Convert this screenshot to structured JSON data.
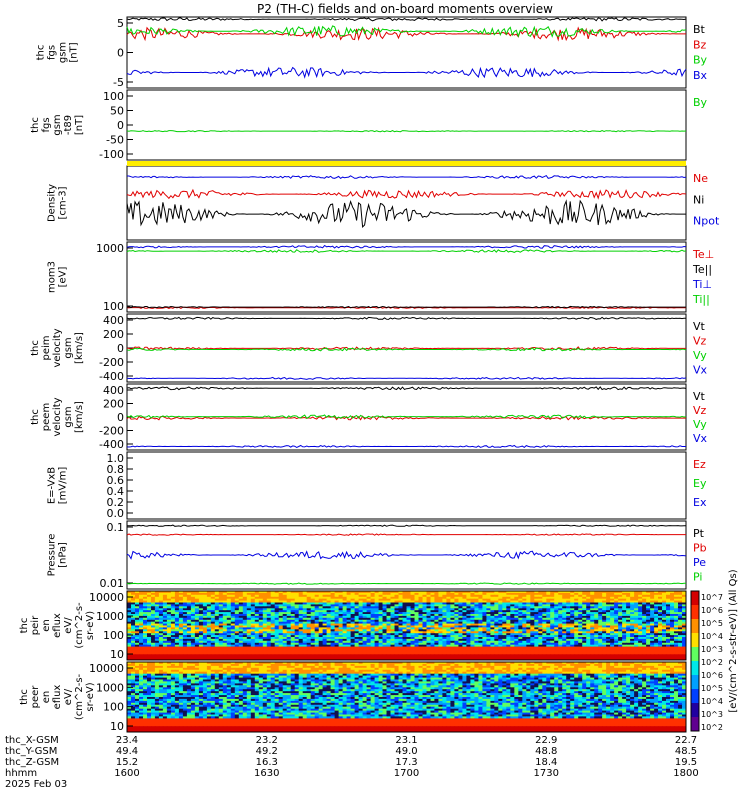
{
  "chart_data": {
    "type": "line",
    "title": "P2 (TH-C) fields and on-board moments overview",
    "panels": [
      {
        "id": "fgs_gsm",
        "ylabel": [
          "thc",
          "fgs",
          "gsm",
          "[nT]"
        ],
        "yticks": [
          "5",
          "0",
          "-5"
        ],
        "ylim": [
          -7,
          9
        ],
        "series": [
          {
            "name": "Bt",
            "color": "#000000",
            "base": 8.5,
            "amp": 0.4
          },
          {
            "name": "Bz",
            "color": "#e00000",
            "base": 5.2,
            "amp": 1.4
          },
          {
            "name": "By",
            "color": "#00d000",
            "base": 5.8,
            "amp": 1.3
          },
          {
            "name": "Bx",
            "color": "#0000e0",
            "base": -3.5,
            "amp": 1.2
          }
        ]
      },
      {
        "id": "fgs_gsm_minus_t89",
        "ylabel": [
          "thc",
          "fgs",
          "gsm",
          "-t89",
          "[nT]"
        ],
        "yticks": [
          "100",
          "50",
          "0",
          "-50",
          "-100"
        ],
        "ylim": [
          -125,
          110
        ],
        "series": [
          {
            "name": "By",
            "color": "#00d000",
            "base": -28,
            "amp": 2
          }
        ]
      },
      {
        "id": "density",
        "ylabel": [
          "Density",
          "[cm-3]"
        ],
        "yticks": [],
        "ylim": [
          0,
          1
        ],
        "series": [
          {
            "name": "Ne",
            "color": "#e00000",
            "base": 0.62,
            "amp": 0.06
          },
          {
            "name": "Ni",
            "color": "#000000",
            "base": 0.35,
            "amp": 0.18
          },
          {
            "name": "Npot",
            "color": "#0000e0",
            "base": 0.85,
            "amp": 0.02
          }
        ]
      },
      {
        "id": "temperature",
        "ylabel": [
          "mom3",
          "[eV]"
        ],
        "yticks": [
          "1000",
          "100"
        ],
        "ylim": [
          0,
          1
        ],
        "series": [
          {
            "name": "Te⊥",
            "color": "#e00000",
            "base": 0.06,
            "amp": 0.01
          },
          {
            "name": "Te||",
            "color": "#000000",
            "base": 0.07,
            "amp": 0.01
          },
          {
            "name": "Ti⊥",
            "color": "#0000e0",
            "base": 0.93,
            "amp": 0.02
          },
          {
            "name": "Ti||",
            "color": "#00d000",
            "base": 0.87,
            "amp": 0.02
          }
        ]
      },
      {
        "id": "peim_velocity",
        "ylabel": [
          "thc",
          "peim",
          "velocity",
          "gsm",
          "[km/s]"
        ],
        "yticks": [
          "400",
          "200",
          "0",
          "-200",
          "-400"
        ],
        "ylim": [
          -450,
          480
        ],
        "series": [
          {
            "name": "Vt",
            "color": "#000000",
            "base": 420,
            "amp": 15
          },
          {
            "name": "Vz",
            "color": "#e00000",
            "base": 10,
            "amp": 20
          },
          {
            "name": "Vy",
            "color": "#00d000",
            "base": -5,
            "amp": 20
          },
          {
            "name": "Vx",
            "color": "#0000e0",
            "base": -400,
            "amp": 15
          }
        ]
      },
      {
        "id": "peem_velocity",
        "ylabel": [
          "thc",
          "peem",
          "velocity",
          "gsm",
          "[km/s]"
        ],
        "yticks": [
          "400",
          "200",
          "0",
          "-200",
          "-400"
        ],
        "ylim": [
          -450,
          480
        ],
        "series": [
          {
            "name": "Vt",
            "color": "#000000",
            "base": 420,
            "amp": 20
          },
          {
            "name": "Vz",
            "color": "#e00000",
            "base": 0,
            "amp": 25
          },
          {
            "name": "Vy",
            "color": "#00d000",
            "base": 20,
            "amp": 25
          },
          {
            "name": "Vx",
            "color": "#0000e0",
            "base": -400,
            "amp": 15
          }
        ]
      },
      {
        "id": "efield",
        "ylabel": [
          "E=-VxB",
          "[mV/m]"
        ],
        "yticks": [
          "1.0",
          "0.8",
          "0.6",
          "0.4",
          "0.2",
          "0.0"
        ],
        "ylim": [
          -0.05,
          1.02
        ],
        "series": [
          {
            "name": "Ez",
            "color": "#e00000",
            "base": 0,
            "amp": 0
          },
          {
            "name": "Ey",
            "color": "#00d000",
            "base": 0,
            "amp": 0
          },
          {
            "name": "Ex",
            "color": "#0000e0",
            "base": 0,
            "amp": 0
          }
        ]
      },
      {
        "id": "pressure",
        "ylabel": [
          "Pressure",
          "[nPa]"
        ],
        "yticks": [
          "0.1",
          "0.01"
        ],
        "ylim": [
          0,
          1
        ],
        "series": [
          {
            "name": "Pt",
            "color": "#000000",
            "base": 0.93,
            "amp": 0.01
          },
          {
            "name": "Pb",
            "color": "#e00000",
            "base": 0.8,
            "amp": 0.01
          },
          {
            "name": "Pe",
            "color": "#0000e0",
            "base": 0.5,
            "amp": 0.06
          },
          {
            "name": "Pi",
            "color": "#00d000",
            "base": 0.08,
            "amp": 0.01
          }
        ]
      },
      {
        "id": "peir_eflux",
        "ylabel": [
          "thc",
          "peir",
          "en",
          "eflux",
          "eV/",
          "(cm^2-s-",
          "sr-eV)"
        ],
        "yticks": [
          "10000",
          "1000",
          "100",
          "10"
        ],
        "ylim": [
          5,
          20000
        ],
        "series": []
      },
      {
        "id": "peer_eflux",
        "ylabel": [
          "thc",
          "peer",
          "en",
          "eflux",
          "eV/",
          "(cm^2-s-",
          "sr-eV)"
        ],
        "yticks": [
          "10000",
          "1000",
          "100",
          "10"
        ],
        "ylim": [
          5,
          20000
        ],
        "series": []
      }
    ],
    "colorbar": {
      "label": "[eV/(cm^2-s-str-eV)] (All Qs)",
      "ticks": [
        "10^7",
        "10^6",
        "10^5",
        "10^4",
        "10^3",
        "10^2",
        "10^6",
        "10^5",
        "10^4",
        "10^3",
        "10^2"
      ]
    },
    "xaxis": {
      "rows": [
        {
          "label": "thc_X-GSM",
          "values": [
            "23.4",
            "23.2",
            "23.1",
            "22.9",
            "22.7"
          ]
        },
        {
          "label": "thc_Y-GSM",
          "values": [
            "49.4",
            "49.2",
            "49.0",
            "48.8",
            "48.5"
          ]
        },
        {
          "label": "thc_Z-GSM",
          "values": [
            "15.2",
            "16.3",
            "17.3",
            "18.4",
            "19.5"
          ]
        },
        {
          "label": "hhmm",
          "values": [
            "1600",
            "1630",
            "1700",
            "1730",
            "1800"
          ]
        }
      ],
      "date": "2025 Feb 03"
    }
  }
}
